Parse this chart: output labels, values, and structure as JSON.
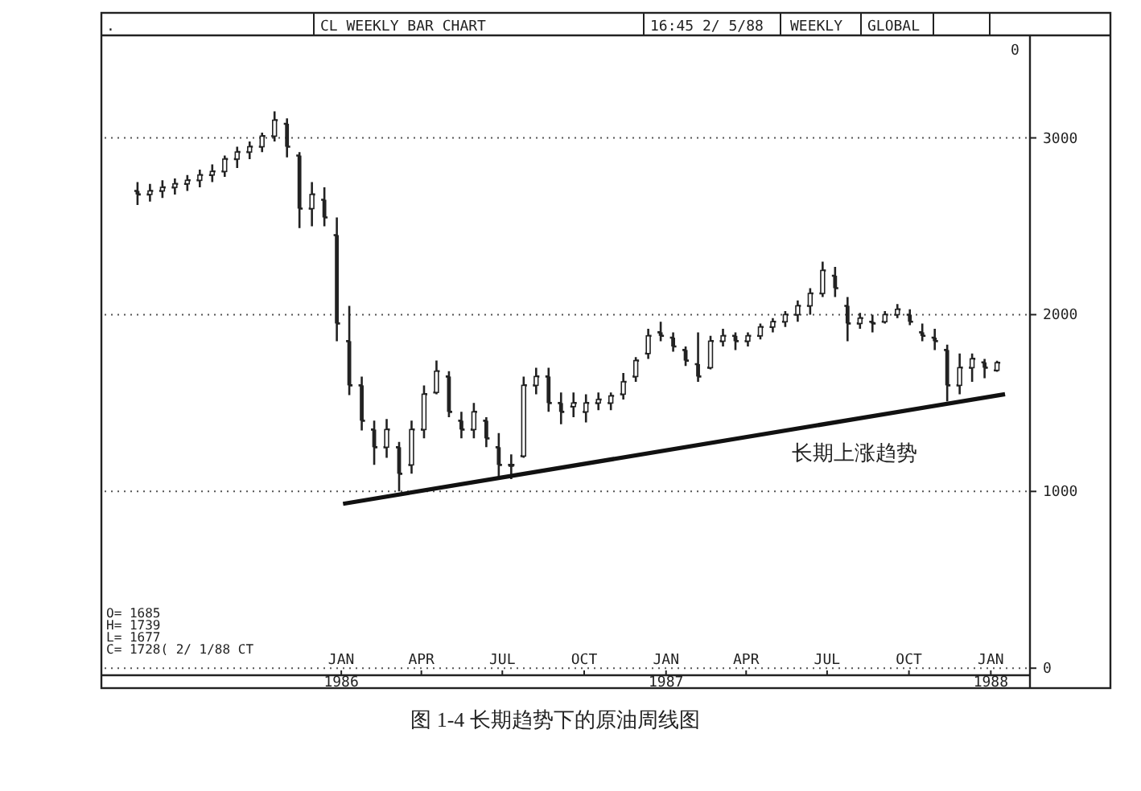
{
  "chart_data": {
    "type": "candlestick",
    "title": "CL WEEKLY BAR CHART",
    "annotations": [
      ".",
      "16:45  2/ 5/88",
      "WEEKLY",
      "GLOBAL",
      "O= 1685",
      "H= 1739",
      "L= 1677",
      "C= 1728( 2/ 1/88 CT",
      "图 1-4   长期趋势下的原油周线图",
      "长期上涨趋势",
      "0"
    ],
    "series": [
      {
        "color": "#222222",
        "x": [
          "1985-05-17",
          "1985-05-31",
          "1985-06-14",
          "1985-06-28",
          "1985-07-12",
          "1985-07-26",
          "1985-08-09",
          "1985-08-23",
          "1985-09-06",
          "1985-09-20",
          "1985-10-04",
          "1985-10-18",
          "1985-11-01",
          "1985-11-15",
          "1985-11-29",
          "1985-12-13",
          "1985-12-27",
          "1986-01-10",
          "1986-01-24",
          "1986-02-07",
          "1986-02-21",
          "1986-03-07",
          "1986-03-21",
          "1986-04-04",
          "1986-04-18",
          "1986-05-02",
          "1986-05-16",
          "1986-05-30",
          "1986-06-13",
          "1986-06-27",
          "1986-07-11",
          "1986-07-25",
          "1986-08-08",
          "1986-08-22",
          "1986-09-05",
          "1986-09-19",
          "1986-10-03",
          "1986-10-17",
          "1986-10-31",
          "1986-11-14",
          "1986-11-28",
          "1986-12-12",
          "1986-12-26",
          "1987-01-09",
          "1987-01-23",
          "1987-02-06",
          "1987-02-20",
          "1987-03-06",
          "1987-03-20",
          "1987-04-03",
          "1987-04-17",
          "1987-05-01",
          "1987-05-15",
          "1987-05-29",
          "1987-06-12",
          "1987-06-26",
          "1987-07-10",
          "1987-07-24",
          "1987-08-07",
          "1987-08-21",
          "1987-09-04",
          "1987-09-18",
          "1987-10-02",
          "1987-10-16",
          "1987-10-30",
          "1987-11-13",
          "1987-11-27",
          "1987-12-11",
          "1987-12-25",
          "1988-01-08"
        ],
        "ohlc": [
          [
            2700,
            2750,
            2620,
            2680
          ],
          [
            2680,
            2740,
            2640,
            2700
          ],
          [
            2700,
            2760,
            2660,
            2720
          ],
          [
            2720,
            2770,
            2680,
            2740
          ],
          [
            2740,
            2790,
            2700,
            2760
          ],
          [
            2760,
            2820,
            2720,
            2790
          ],
          [
            2790,
            2850,
            2750,
            2810
          ],
          [
            2810,
            2900,
            2780,
            2880
          ],
          [
            2880,
            2950,
            2830,
            2920
          ],
          [
            2920,
            2980,
            2880,
            2950
          ],
          [
            2950,
            3030,
            2920,
            3010
          ],
          [
            3010,
            3150,
            2980,
            3100
          ],
          [
            3080,
            3110,
            2890,
            2950
          ],
          [
            2900,
            2920,
            2490,
            2600
          ],
          [
            2600,
            2750,
            2500,
            2680
          ],
          [
            2650,
            2720,
            2500,
            2550
          ],
          [
            2450,
            2550,
            1850,
            1950
          ],
          [
            1850,
            2050,
            1545,
            1600
          ],
          [
            1600,
            1650,
            1345,
            1400
          ],
          [
            1350,
            1400,
            1150,
            1250
          ],
          [
            1250,
            1410,
            1190,
            1350
          ],
          [
            1250,
            1280,
            1000,
            1100
          ],
          [
            1150,
            1400,
            1100,
            1350
          ],
          [
            1350,
            1600,
            1300,
            1550
          ],
          [
            1560,
            1740,
            1550,
            1680
          ],
          [
            1650,
            1680,
            1420,
            1450
          ],
          [
            1400,
            1450,
            1300,
            1350
          ],
          [
            1350,
            1500,
            1300,
            1450
          ],
          [
            1400,
            1420,
            1250,
            1300
          ],
          [
            1250,
            1330,
            1070,
            1150
          ],
          [
            1150,
            1210,
            1070,
            1150
          ],
          [
            1200,
            1650,
            1190,
            1600
          ],
          [
            1600,
            1700,
            1550,
            1650
          ],
          [
            1650,
            1700,
            1450,
            1500
          ],
          [
            1500,
            1560,
            1380,
            1450
          ],
          [
            1480,
            1560,
            1420,
            1500
          ],
          [
            1450,
            1550,
            1390,
            1500
          ],
          [
            1500,
            1560,
            1460,
            1520
          ],
          [
            1500,
            1560,
            1460,
            1540
          ],
          [
            1550,
            1670,
            1520,
            1620
          ],
          [
            1650,
            1760,
            1620,
            1740
          ],
          [
            1780,
            1920,
            1750,
            1880
          ],
          [
            1900,
            1960,
            1850,
            1880
          ],
          [
            1870,
            1900,
            1790,
            1820
          ],
          [
            1800,
            1820,
            1710,
            1740
          ],
          [
            1720,
            1900,
            1620,
            1650
          ],
          [
            1700,
            1880,
            1690,
            1850
          ],
          [
            1850,
            1920,
            1820,
            1880
          ],
          [
            1880,
            1900,
            1800,
            1850
          ],
          [
            1850,
            1900,
            1820,
            1880
          ],
          [
            1880,
            1950,
            1860,
            1930
          ],
          [
            1930,
            1980,
            1900,
            1960
          ],
          [
            1960,
            2020,
            1930,
            2000
          ],
          [
            2000,
            2080,
            1960,
            2050
          ],
          [
            2050,
            2150,
            2000,
            2120
          ],
          [
            2120,
            2300,
            2100,
            2250
          ],
          [
            2220,
            2270,
            2100,
            2150
          ],
          [
            2050,
            2100,
            1850,
            1950
          ],
          [
            1950,
            2010,
            1920,
            1980
          ],
          [
            1960,
            2000,
            1900,
            1950
          ],
          [
            1960,
            2020,
            1950,
            2000
          ],
          [
            2000,
            2060,
            1980,
            2030
          ],
          [
            2000,
            2030,
            1940,
            1960
          ],
          [
            1900,
            1950,
            1850,
            1880
          ],
          [
            1870,
            1920,
            1800,
            1850
          ],
          [
            1800,
            1830,
            1510,
            1600
          ],
          [
            1600,
            1780,
            1550,
            1700
          ],
          [
            1700,
            1780,
            1620,
            1750
          ],
          [
            1730,
            1750,
            1640,
            1700
          ],
          [
            1685,
            1739,
            1677,
            1728
          ]
        ]
      },
      {
        "type": "line",
        "color": "#111111",
        "x": [
          "1986-01-03",
          "1988-01-17"
        ],
        "values": [
          930,
          1550
        ]
      }
    ],
    "xlim": [
      "1985-04-10",
      "1988-02-14"
    ],
    "xticks": [
      {
        "value": "1986-01-01",
        "label": "JAN\n1986"
      },
      {
        "value": "1986-04-01",
        "label": "APR"
      },
      {
        "value": "1986-07-01",
        "label": "JUL"
      },
      {
        "value": "1986-10-01",
        "label": "OCT"
      },
      {
        "value": "1987-01-01",
        "label": "JAN\n1987"
      },
      {
        "value": "1987-04-01",
        "label": "APR"
      },
      {
        "value": "1987-07-01",
        "label": "JUL"
      },
      {
        "value": "1987-10-01",
        "label": "OCT"
      },
      {
        "value": "1988-01-01",
        "label": "JAN\n1988"
      }
    ],
    "ylim": [
      -40,
      3580
    ],
    "yticks": [
      0,
      1000,
      2000,
      3000
    ],
    "grid": "y"
  }
}
